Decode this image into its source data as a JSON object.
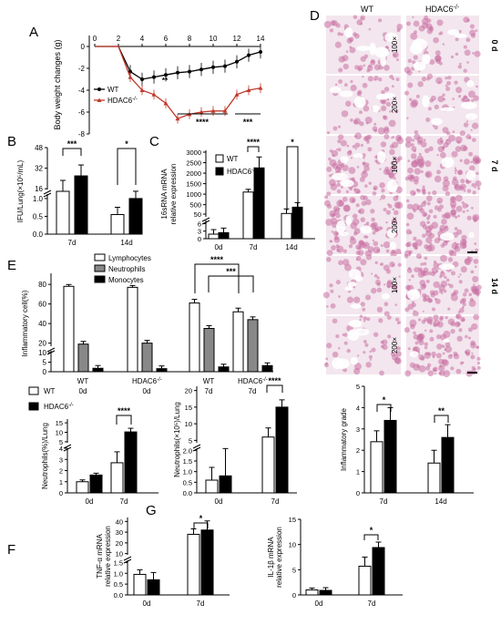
{
  "panel_letters": {
    "A": "A",
    "B": "B",
    "C": "C",
    "D": "D",
    "E": "E",
    "F": "F",
    "G": "G"
  },
  "histology": {
    "col_wt": "WT",
    "col_ko": "HDAC6",
    "col_ko_sup": "-/-",
    "mags": [
      "100×",
      "200×",
      "100×",
      "200×",
      "100×",
      "200×"
    ],
    "time_labels": [
      "0 d",
      "7 d",
      "14 d"
    ],
    "tissue_color": "#c86fa3",
    "bg_color": "#f3e6ee"
  },
  "colors": {
    "wt": "#000000",
    "ko": "#c0392b",
    "bar_wt": "#ffffff",
    "bar_ko": "#000000",
    "neut": "#888888"
  },
  "chart_data": [
    {
      "id": "A",
      "type": "line",
      "ylabel": "Body weight changes (g)",
      "x": [
        0,
        1,
        2,
        3,
        4,
        5,
        6,
        7,
        8,
        9,
        10,
        11,
        12,
        13,
        14
      ],
      "xticks": [
        "0",
        "2",
        "4",
        "6",
        "8",
        "10",
        "12",
        "14"
      ],
      "ylim": [
        -8,
        1
      ],
      "yticks": [
        0,
        -2,
        -4,
        -6,
        -8
      ],
      "series": [
        {
          "name": "WT",
          "sup": "",
          "values": [
            0,
            0,
            0,
            -2.3,
            -3.0,
            -2.8,
            -2.6,
            -2.4,
            -2.3,
            -2.1,
            -1.9,
            -1.8,
            -1.4,
            -0.8,
            -0.5
          ]
        },
        {
          "name": "HDAC6",
          "sup": "-/-",
          "values": [
            0,
            0,
            0,
            -2.8,
            -4.0,
            -4.4,
            -5.2,
            -6.6,
            -6.2,
            -6.0,
            -5.9,
            -5.9,
            -4.4,
            -4.0,
            -3.8
          ]
        }
      ],
      "sig": [
        "**",
        "****",
        "***"
      ]
    },
    {
      "id": "B",
      "type": "bar",
      "ylabel": "IFU/Lung(×10⁵/mL)",
      "categories": [
        "7d",
        "14d"
      ],
      "yticks_low": [
        "0.0",
        "0.5",
        "1.0"
      ],
      "yticks_high": [
        "16",
        "32",
        "48"
      ],
      "series": [
        {
          "name": "WT",
          "values": [
            14,
            0.55
          ]
        },
        {
          "name": "HDAC6-/-",
          "values": [
            26,
            1.0
          ]
        }
      ],
      "sig": [
        "***",
        "*"
      ]
    },
    {
      "id": "C",
      "type": "bar",
      "ylabel": "16sRNA mRNA relative expression",
      "categories": [
        "0d",
        "7d",
        "14d"
      ],
      "yticks_low": [
        "0",
        "3",
        "6"
      ],
      "yticks_high": [
        "50",
        "500",
        "1000",
        "1500",
        "2000",
        "2500",
        "3000"
      ],
      "series": [
        {
          "name": "WT",
          "sup": "",
          "values": [
            1.8,
            1100,
            80
          ]
        },
        {
          "name": "HDAC6",
          "sup": "-/-",
          "values": [
            2.4,
            2250,
            380
          ]
        }
      ],
      "sig": [
        "****",
        "*"
      ]
    },
    {
      "id": "E",
      "type": "bar",
      "ylabel": "Inflammatory cell(%)",
      "groups": [
        {
          "g": "WT",
          "t": "0d"
        },
        {
          "g": "HDAC6",
          "sup": "-/-",
          "t": "0d"
        },
        {
          "g": "WT",
          "t": "7d"
        },
        {
          "g": "HDAC6",
          "sup": "-/-",
          "t": "7d"
        }
      ],
      "yticks_low": [
        "0",
        "5",
        "10"
      ],
      "yticks_high": [
        "20",
        "40",
        "60",
        "80"
      ],
      "series": [
        {
          "name": "Lymphocytes",
          "values": [
            78,
            77,
            61,
            52
          ]
        },
        {
          "name": "Neutrophils",
          "values": [
            19,
            20,
            35,
            44
          ]
        },
        {
          "name": "Monocytes",
          "values": [
            1.8,
            1.6,
            2.5,
            3.2
          ]
        }
      ],
      "sig": [
        "****",
        "***"
      ]
    },
    {
      "id": "F1",
      "type": "bar",
      "ylabel": "Neutrophils(%)/Lung",
      "categories": [
        "0d",
        "7d"
      ],
      "yticks_low": [
        "0",
        "1",
        "2",
        "3",
        "4"
      ],
      "yticks_high": [
        "5",
        "10",
        "15"
      ],
      "series": [
        {
          "name": "WT",
          "sup": "",
          "values": [
            1.0,
            2.7
          ]
        },
        {
          "name": "HDAC6",
          "sup": "-/-",
          "values": [
            1.6,
            10.2
          ]
        }
      ],
      "sig": [
        "****"
      ]
    },
    {
      "id": "F2",
      "type": "bar",
      "ylabel": "Neutrophils(×10⁵)/Lung",
      "categories": [
        "0d",
        "7d"
      ],
      "yticks_low": [
        "0.0",
        "0.5",
        "1.0",
        "1.5",
        "2.0"
      ],
      "yticks_high": [
        "5",
        "10",
        "15",
        "20"
      ],
      "series": [
        {
          "name": "WT",
          "values": [
            0.6,
            6
          ]
        },
        {
          "name": "HDAC6-/-",
          "values": [
            0.8,
            15
          ]
        }
      ],
      "sig": [
        "****"
      ]
    },
    {
      "id": "F3",
      "type": "bar",
      "ylabel": "Inflammatory grade",
      "categories": [
        "7d",
        "14d"
      ],
      "ylim": [
        0,
        5
      ],
      "yticks": [
        "0",
        "1",
        "2",
        "3",
        "4",
        "5"
      ],
      "series": [
        {
          "name": "WT",
          "values": [
            2.4,
            1.4
          ]
        },
        {
          "name": "HDAC6-/-",
          "values": [
            3.4,
            2.6
          ]
        }
      ],
      "sig": [
        "*",
        "**"
      ]
    },
    {
      "id": "G1",
      "type": "bar",
      "ylabel": "TNF-α mRNA relative expression",
      "categories": [
        "0d",
        "7d"
      ],
      "yticks_low": [
        "0.0",
        "0.5",
        "1.0",
        "1.5"
      ],
      "yticks_high": [
        "10",
        "20",
        "30",
        "40"
      ],
      "series": [
        {
          "name": "WT",
          "values": [
            0.95,
            28
          ]
        },
        {
          "name": "HDAC6-/-",
          "values": [
            0.7,
            32
          ]
        }
      ],
      "sig": [
        "*"
      ]
    },
    {
      "id": "G2",
      "type": "bar",
      "ylabel": "IL-1β mRNA relative expression",
      "categories": [
        "0d",
        "7d"
      ],
      "ylim": [
        0,
        15
      ],
      "yticks": [
        "0",
        "5",
        "10",
        "15"
      ],
      "series": [
        {
          "name": "WT",
          "values": [
            1.0,
            5.7
          ]
        },
        {
          "name": "HDAC6-/-",
          "values": [
            0.9,
            9.4
          ]
        }
      ],
      "sig": [
        "*"
      ]
    }
  ]
}
